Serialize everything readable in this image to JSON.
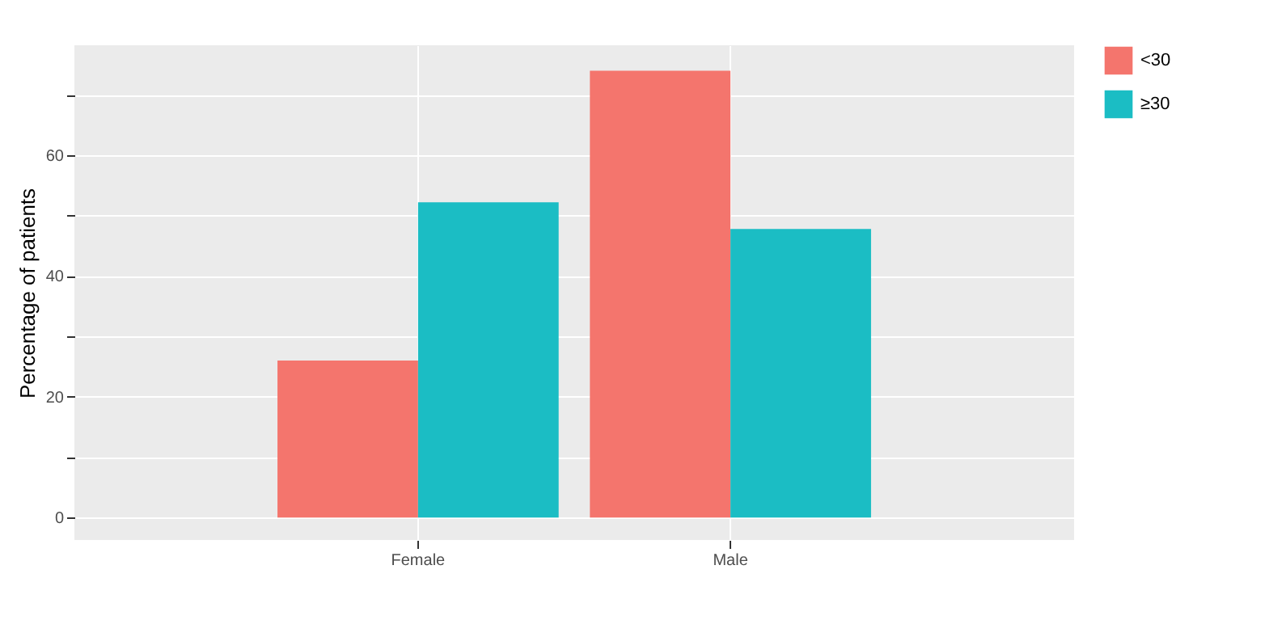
{
  "chart_data": {
    "type": "bar",
    "ylabel": "Percentage of patients",
    "categories": [
      "Female",
      "Male"
    ],
    "series": [
      {
        "name": "<30",
        "color": "#f4756d",
        "values": [
          26.0,
          74.0
        ]
      },
      {
        "name": "≥30",
        "color": "#1bbdc4",
        "values": [
          52.2,
          47.8
        ]
      }
    ],
    "ylim": [
      -3.7,
      78.2
    ],
    "yticks": [
      0,
      {
        "value": 10,
        "label": null
      },
      20,
      {
        "value": 30,
        "label": null
      },
      40,
      {
        "value": 50,
        "label": null
      },
      60,
      {
        "value": 70,
        "label": null
      }
    ],
    "grid": true,
    "legend": "right"
  }
}
